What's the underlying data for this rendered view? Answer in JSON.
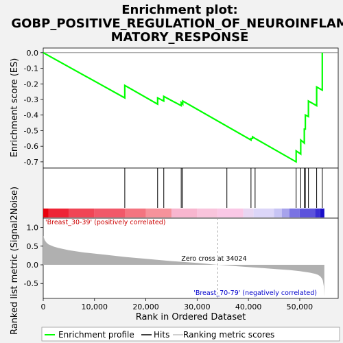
{
  "chart_data": {
    "type": "line",
    "title_lines": [
      "Enrichment plot:",
      "GOBP_POSITIVE_REGULATION_OF_NEUROINFLAM",
      "MATORY_RESPONSE"
    ],
    "es_panel": {
      "ylabel": "Enrichment score (ES)",
      "ylim": [
        -0.74,
        0.03
      ],
      "yticks": [
        0.0,
        -0.1,
        -0.2,
        -0.3,
        -0.4,
        -0.5,
        -0.6,
        -0.7
      ],
      "ytick_labels": [
        "0.0",
        "-0.1",
        "-0.2",
        "-0.3",
        "-0.4",
        "-0.5",
        "-0.6",
        "-0.7"
      ],
      "line_color": "#00ff00",
      "series": [
        {
          "x": [
            0,
            15900,
            15900,
            22300,
            22300,
            23500,
            23500,
            26900,
            26900,
            27200,
            27200,
            40500,
            40500,
            40800,
            40800,
            41300,
            41300,
            49300,
            49300,
            50200,
            50200,
            50900,
            50900,
            51100,
            51100,
            51700,
            51700,
            53300,
            53300,
            54400,
            54400
          ],
          "y": [
            0.0,
            -0.29,
            -0.21,
            -0.33,
            -0.29,
            -0.31,
            -0.28,
            -0.34,
            -0.32,
            -0.33,
            -0.31,
            -0.56,
            -0.55,
            -0.55,
            -0.54,
            -0.55,
            -0.55,
            -0.7,
            -0.63,
            -0.65,
            -0.56,
            -0.58,
            -0.49,
            -0.49,
            -0.4,
            -0.41,
            -0.31,
            -0.34,
            -0.22,
            -0.24,
            0.0
          ]
        }
      ]
    },
    "hits": [
      15900,
      22300,
      23500,
      26900,
      27200,
      35800,
      40500,
      41300,
      49300,
      50200,
      50900,
      51100,
      51700,
      53300,
      54400
    ],
    "rank_bar": {
      "segments": [
        {
          "to": 1000,
          "color": "#e8000c"
        },
        {
          "to": 5000,
          "color": "#ee2436"
        },
        {
          "to": 10000,
          "color": "#f04555"
        },
        {
          "to": 16000,
          "color": "#f15869"
        },
        {
          "to": 20000,
          "color": "#f47480"
        },
        {
          "to": 25000,
          "color": "#f6929b"
        },
        {
          "to": 30000,
          "color": "#f8b6cf"
        },
        {
          "to": 34000,
          "color": "#f9c4dc"
        },
        {
          "to": 39000,
          "color": "#fac8e6"
        },
        {
          "to": 41000,
          "color": "#e8d6f2"
        },
        {
          "to": 45000,
          "color": "#dcd6f8"
        },
        {
          "to": 46500,
          "color": "#c7c4f4"
        },
        {
          "to": 48000,
          "color": "#a7a3ec"
        },
        {
          "to": 50000,
          "color": "#7a73e2"
        },
        {
          "to": 53000,
          "color": "#5d53dc"
        },
        {
          "to": 54000,
          "color": "#3a2ed4"
        },
        {
          "to": 54800,
          "color": "#1a0ec8"
        }
      ]
    },
    "metric_panel": {
      "ylabel": "Ranked list metric (Signal2Noise)",
      "ylim": [
        -0.9,
        1.25
      ],
      "yticks": [
        1.0,
        0.5,
        0.0,
        -0.5
      ],
      "ytick_labels": [
        "1.0",
        "0.5",
        "0.0",
        "-0.5"
      ],
      "fill_color": "#b0b0b0",
      "curve_x": [
        0,
        100,
        300,
        600,
        1000,
        2000,
        3000,
        5000,
        8000,
        12000,
        16000,
        20000,
        25000,
        30000,
        34024,
        38000,
        42000,
        46000,
        48000,
        50000,
        51000,
        52000,
        53000,
        53600,
        54000,
        54300,
        54500,
        54700,
        54800
      ],
      "curve_y": [
        0.78,
        0.74,
        0.66,
        0.6,
        0.55,
        0.49,
        0.45,
        0.39,
        0.33,
        0.27,
        0.21,
        0.16,
        0.1,
        0.05,
        0.0,
        -0.04,
        -0.08,
        -0.12,
        -0.14,
        -0.17,
        -0.19,
        -0.21,
        -0.24,
        -0.27,
        -0.31,
        -0.36,
        -0.42,
        -0.58,
        -0.85
      ],
      "pos_label": "'Breast_30-39' (positively correlated)",
      "neg_label": "'Breast_70-79' (negatively correlated)",
      "zero_cross_label": "Zero cross at 34024",
      "zero_cross_x": 34024
    },
    "xaxis": {
      "xlabel": "Rank in Ordered Dataset",
      "xlim": [
        0,
        57500
      ],
      "xticks": [
        0,
        10000,
        20000,
        30000,
        40000,
        50000
      ],
      "xtick_labels": [
        "0",
        "10,000",
        "20,000",
        "30,000",
        "40,000",
        "50,000"
      ]
    },
    "legend": {
      "placement": "bottom",
      "items": [
        {
          "label": "Enrichment profile",
          "color": "#00ff00"
        },
        {
          "label": "Hits",
          "color": "#000000"
        },
        {
          "label": "Ranking metric scores",
          "color": "#c0c0c0"
        }
      ]
    }
  }
}
